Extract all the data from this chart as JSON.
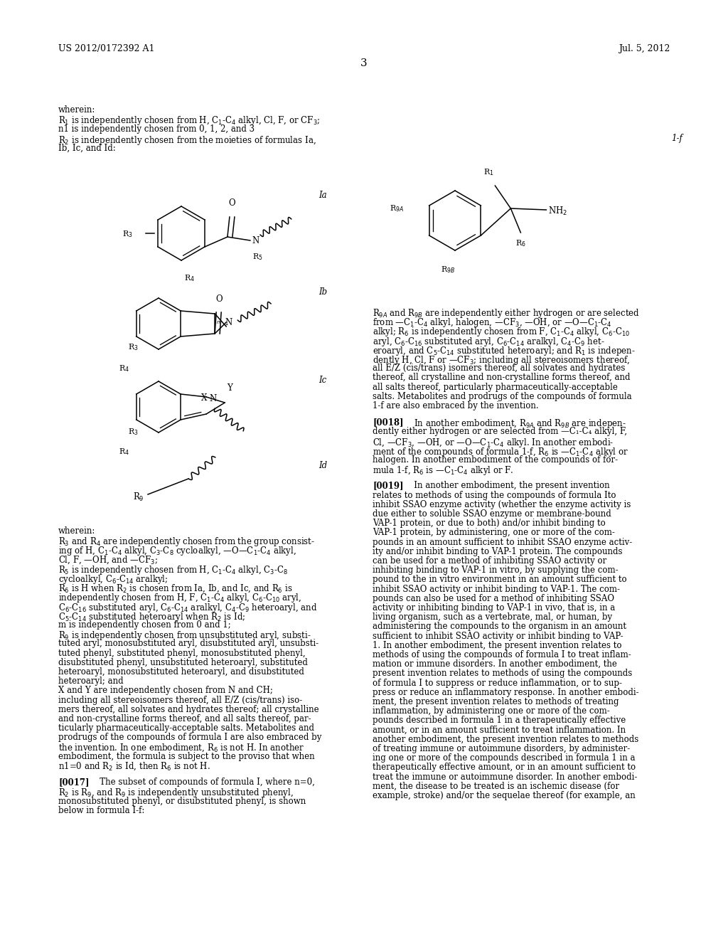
{
  "page_num": "3",
  "patent_num": "US 2012/0172392 A1",
  "patent_date": "Jul. 5, 2012",
  "bg_color": "#ffffff",
  "text_color": "#000000"
}
